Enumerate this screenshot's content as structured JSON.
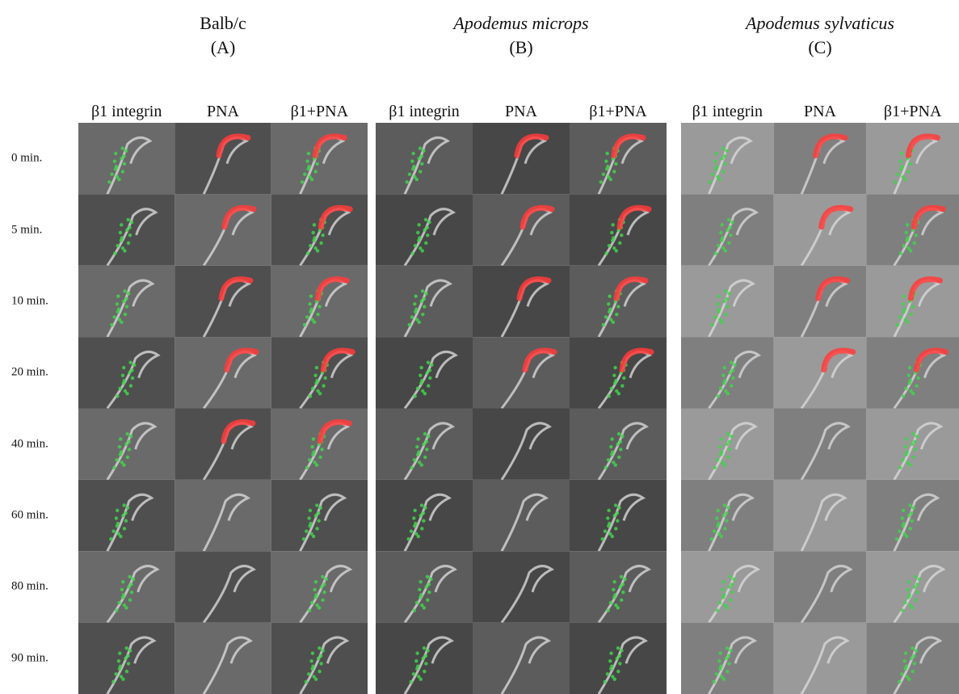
{
  "panels": [
    {
      "title": "Balb/c",
      "label": "(A)",
      "columns": [
        "β1 integrin",
        "PNA",
        "β1+PNA"
      ]
    },
    {
      "title": "Apodemus microps",
      "label": "(B)",
      "columns": [
        "β1 integrin",
        "PNA",
        "β1+PNA"
      ]
    },
    {
      "title": "Apodemus sylvaticus",
      "label": "(C)",
      "columns": [
        "β1 integrin",
        "PNA",
        "β1+PNA"
      ]
    }
  ],
  "row_labels": [
    "0 min.",
    "5 min.",
    "10 min.",
    "20 min.",
    "40 min.",
    "60 min.",
    "80 min.",
    "90 min."
  ]
}
